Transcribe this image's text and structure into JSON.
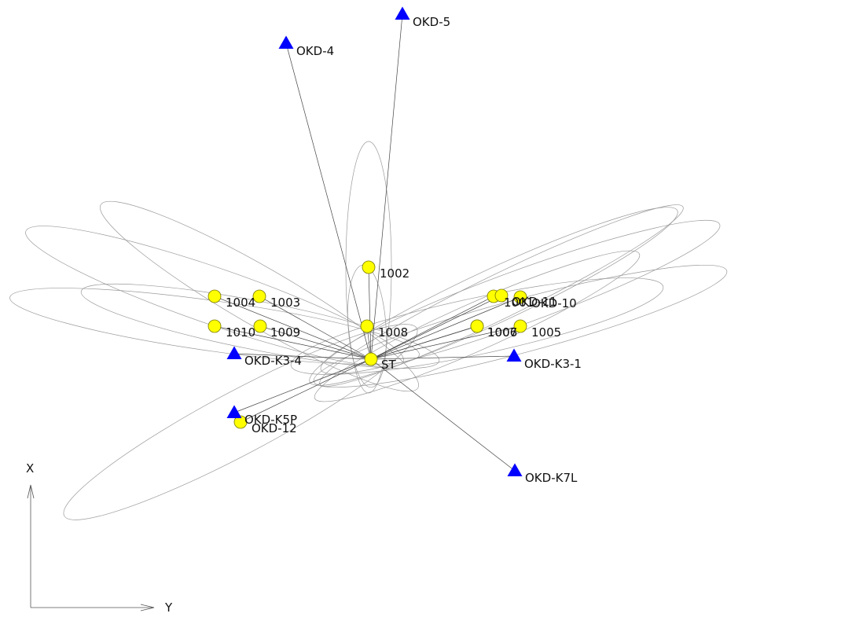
{
  "station": {
    "id": "ST",
    "label": "ST"
  },
  "control_points": [
    {
      "id": "OKD-5",
      "label": "OKD-5"
    },
    {
      "id": "OKD-4",
      "label": "OKD-4"
    },
    {
      "id": "OKD-K3-4",
      "label": "OKD-K3-4"
    },
    {
      "id": "OKD-K3-1",
      "label": "OKD-K3-1"
    },
    {
      "id": "OKD-K5P",
      "label": "OKD-K5P"
    },
    {
      "id": "OKD-K7L",
      "label": "OKD-K7L"
    }
  ],
  "observed_points": [
    {
      "id": "1002",
      "label": "1002"
    },
    {
      "id": "1004",
      "label": "1004"
    },
    {
      "id": "1003",
      "label": "1003"
    },
    {
      "id": "1010",
      "label": "1010"
    },
    {
      "id": "1009",
      "label": "1009"
    },
    {
      "id": "1008",
      "label": "1008"
    },
    {
      "id": "1001",
      "label": "1001"
    },
    {
      "id": "1006",
      "label": "1006"
    },
    {
      "id": "1007",
      "label": "1007"
    },
    {
      "id": "1005",
      "label": "1005"
    },
    {
      "id": "OKD-11",
      "label": "OKD-11"
    },
    {
      "id": "OKD-10",
      "label": "OKD-10"
    },
    {
      "id": "OKD-12",
      "label": "OKD-12"
    }
  ],
  "axes": {
    "x_label": "X",
    "y_label": "Y"
  },
  "colors": {
    "control_fill": "#0000ff",
    "point_fill": "#ffff00",
    "point_stroke": "#777700",
    "line": "#444444",
    "ellipse": "#9a9a9a"
  }
}
